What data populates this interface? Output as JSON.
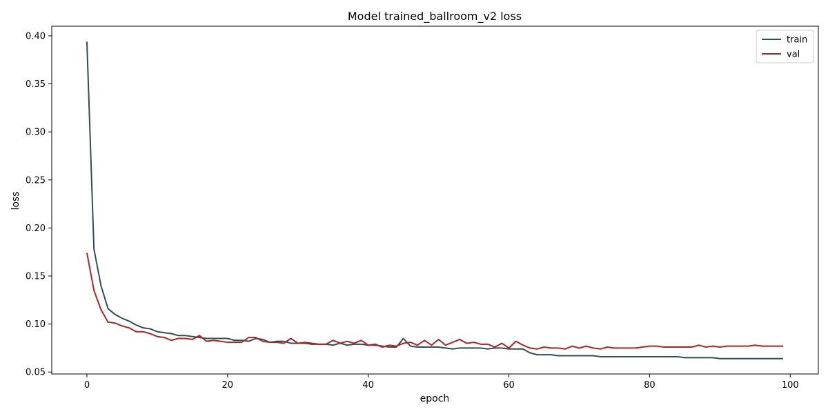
{
  "chart_data": {
    "type": "line",
    "title": "Model trained_ballroom_v2 loss",
    "xlabel": "epoch",
    "ylabel": "loss",
    "xlim": [
      -5,
      104
    ],
    "ylim": [
      0.048,
      0.41
    ],
    "xticks": [
      0,
      20,
      40,
      60,
      80,
      100
    ],
    "yticks": [
      0.05,
      0.1,
      0.15,
      0.2,
      0.25,
      0.3,
      0.35,
      0.4
    ],
    "ytick_labels": [
      "0.05",
      "0.10",
      "0.15",
      "0.20",
      "0.25",
      "0.30",
      "0.35",
      "0.40"
    ],
    "xtick_labels": [
      "0",
      "20",
      "40",
      "60",
      "80",
      "100"
    ],
    "grid": false,
    "legend_position": "top-right",
    "series": [
      {
        "name": "train",
        "color": "#2f4f4f",
        "x": [
          0,
          1,
          2,
          3,
          4,
          5,
          6,
          7,
          8,
          9,
          10,
          11,
          12,
          13,
          14,
          15,
          16,
          17,
          18,
          19,
          20,
          21,
          22,
          23,
          24,
          25,
          26,
          27,
          28,
          29,
          30,
          31,
          32,
          33,
          34,
          35,
          36,
          37,
          38,
          39,
          40,
          41,
          42,
          43,
          44,
          45,
          46,
          47,
          48,
          49,
          50,
          51,
          52,
          53,
          54,
          55,
          56,
          57,
          58,
          59,
          60,
          61,
          62,
          63,
          64,
          65,
          66,
          67,
          68,
          69,
          70,
          71,
          72,
          73,
          74,
          75,
          76,
          77,
          78,
          79,
          80,
          81,
          82,
          83,
          84,
          85,
          86,
          87,
          88,
          89,
          90,
          91,
          92,
          93,
          94,
          95,
          96,
          97,
          98,
          99
        ],
        "y": [
          0.394,
          0.178,
          0.14,
          0.116,
          0.11,
          0.106,
          0.103,
          0.099,
          0.096,
          0.095,
          0.092,
          0.091,
          0.09,
          0.088,
          0.088,
          0.087,
          0.086,
          0.085,
          0.085,
          0.085,
          0.085,
          0.083,
          0.083,
          0.082,
          0.085,
          0.084,
          0.081,
          0.082,
          0.082,
          0.08,
          0.08,
          0.08,
          0.079,
          0.079,
          0.079,
          0.078,
          0.08,
          0.078,
          0.079,
          0.079,
          0.078,
          0.078,
          0.077,
          0.076,
          0.076,
          0.085,
          0.077,
          0.076,
          0.076,
          0.076,
          0.076,
          0.075,
          0.074,
          0.075,
          0.075,
          0.075,
          0.075,
          0.074,
          0.075,
          0.075,
          0.074,
          0.074,
          0.074,
          0.07,
          0.068,
          0.068,
          0.068,
          0.067,
          0.067,
          0.067,
          0.067,
          0.067,
          0.067,
          0.066,
          0.066,
          0.066,
          0.066,
          0.066,
          0.066,
          0.066,
          0.066,
          0.066,
          0.066,
          0.066,
          0.066,
          0.065,
          0.065,
          0.065,
          0.065,
          0.065,
          0.064,
          0.064,
          0.064,
          0.064,
          0.064,
          0.064,
          0.064,
          0.064,
          0.064,
          0.064
        ]
      },
      {
        "name": "val",
        "color": "#b22222",
        "x": [
          0,
          1,
          2,
          3,
          4,
          5,
          6,
          7,
          8,
          9,
          10,
          11,
          12,
          13,
          14,
          15,
          16,
          17,
          18,
          19,
          20,
          21,
          22,
          23,
          24,
          25,
          26,
          27,
          28,
          29,
          30,
          31,
          32,
          33,
          34,
          35,
          36,
          37,
          38,
          39,
          40,
          41,
          42,
          43,
          44,
          45,
          46,
          47,
          48,
          49,
          50,
          51,
          52,
          53,
          54,
          55,
          56,
          57,
          58,
          59,
          60,
          61,
          62,
          63,
          64,
          65,
          66,
          67,
          68,
          69,
          70,
          71,
          72,
          73,
          74,
          75,
          76,
          77,
          78,
          79,
          80,
          81,
          82,
          83,
          84,
          85,
          86,
          87,
          88,
          89,
          90,
          91,
          92,
          93,
          94,
          95,
          96,
          97,
          98,
          99
        ],
        "y": [
          0.174,
          0.135,
          0.115,
          0.102,
          0.101,
          0.098,
          0.096,
          0.092,
          0.092,
          0.09,
          0.087,
          0.086,
          0.083,
          0.085,
          0.085,
          0.084,
          0.088,
          0.082,
          0.083,
          0.082,
          0.081,
          0.081,
          0.081,
          0.086,
          0.086,
          0.082,
          0.081,
          0.081,
          0.08,
          0.085,
          0.08,
          0.081,
          0.08,
          0.079,
          0.079,
          0.083,
          0.08,
          0.082,
          0.08,
          0.083,
          0.078,
          0.079,
          0.076,
          0.078,
          0.077,
          0.08,
          0.081,
          0.078,
          0.083,
          0.078,
          0.084,
          0.078,
          0.081,
          0.084,
          0.08,
          0.081,
          0.079,
          0.079,
          0.076,
          0.08,
          0.075,
          0.082,
          0.078,
          0.075,
          0.074,
          0.076,
          0.075,
          0.075,
          0.074,
          0.077,
          0.075,
          0.077,
          0.075,
          0.074,
          0.076,
          0.075,
          0.075,
          0.075,
          0.075,
          0.076,
          0.077,
          0.077,
          0.076,
          0.076,
          0.076,
          0.076,
          0.076,
          0.078,
          0.076,
          0.077,
          0.076,
          0.077,
          0.077,
          0.077,
          0.077,
          0.078,
          0.077,
          0.077,
          0.077,
          0.077
        ]
      }
    ]
  }
}
